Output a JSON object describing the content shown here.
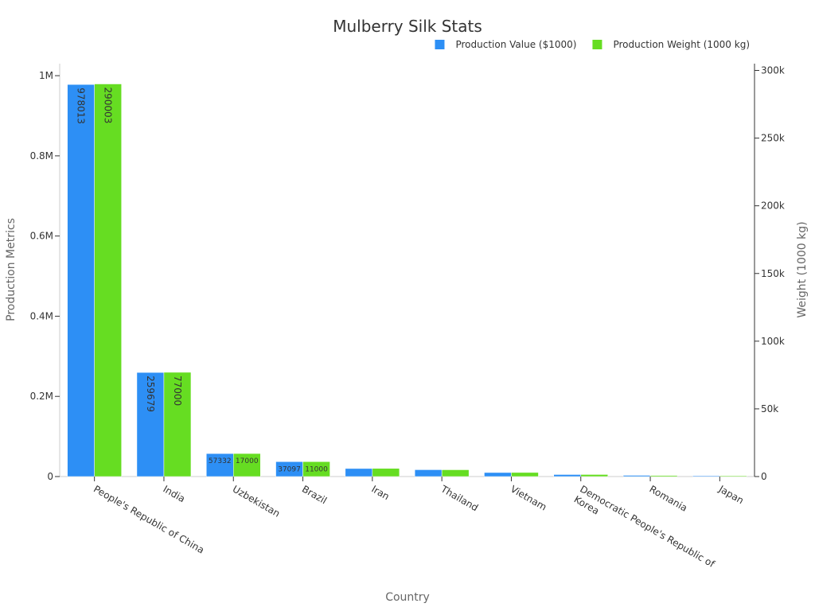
{
  "chart_data": {
    "type": "bar",
    "title": "Mulberry Silk Stats",
    "xlabel": "Country",
    "ylabel": "Production Metrics",
    "y2label": "Weight (1000 kg)",
    "categories": [
      "People's Republic of China",
      "India",
      "Uzbekistan",
      "Brazil",
      "Iran",
      "Thailand",
      "Vietnam",
      "Democratic People's Republic of Korea",
      "Romania",
      "Japan"
    ],
    "series": [
      {
        "name": "Production Value ($1000)",
        "color": "#2d8ff5",
        "axis": "left",
        "values": [
          978013,
          259679,
          57332,
          37097,
          20000,
          17000,
          10000,
          5000,
          3000,
          2000
        ],
        "labels": [
          "978013",
          "259679",
          "57332",
          "37097",
          "",
          "",
          "",
          "",
          "",
          ""
        ]
      },
      {
        "name": "Production Weight (1000 kg)",
        "color": "#66dd22",
        "axis": "right",
        "values": [
          290003,
          77000,
          17000,
          11000,
          6000,
          5000,
          3000,
          1500,
          800,
          500
        ],
        "labels": [
          "290003",
          "77000",
          "17000",
          "11000",
          "",
          "",
          "",
          "",
          "",
          ""
        ]
      }
    ],
    "ylim": [
      0,
      1030000
    ],
    "y2lim": [
      0,
      305000
    ],
    "yticks": [
      {
        "value": 0,
        "label": "0"
      },
      {
        "value": 200000,
        "label": "0.2M"
      },
      {
        "value": 400000,
        "label": "0.4M"
      },
      {
        "value": 600000,
        "label": "0.6M"
      },
      {
        "value": 800000,
        "label": "0.8M"
      },
      {
        "value": 1000000,
        "label": "1M"
      }
    ],
    "y2ticks": [
      {
        "value": 0,
        "label": "0"
      },
      {
        "value": 50000,
        "label": "50k"
      },
      {
        "value": 100000,
        "label": "100k"
      },
      {
        "value": 150000,
        "label": "150k"
      },
      {
        "value": 200000,
        "label": "200k"
      },
      {
        "value": 250000,
        "label": "250k"
      },
      {
        "value": 300000,
        "label": "300k"
      }
    ],
    "legend_position": "top-right",
    "grid": false
  }
}
